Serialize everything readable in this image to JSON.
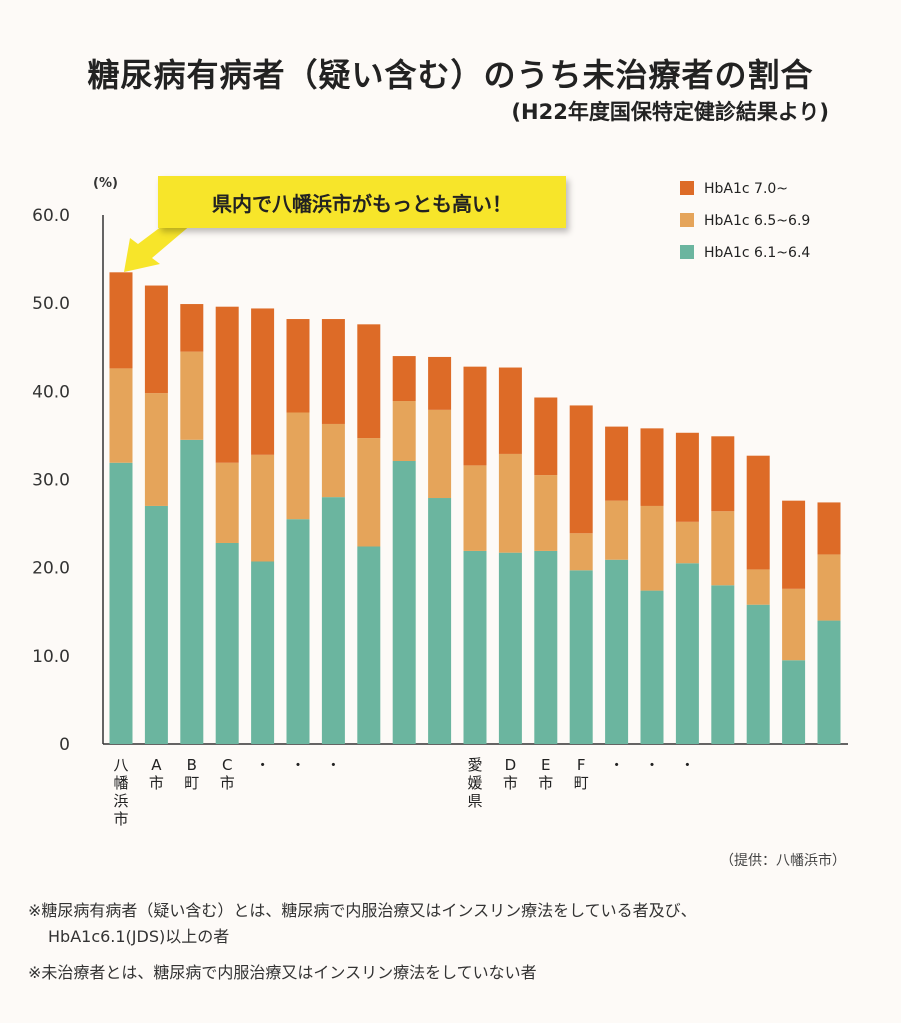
{
  "title": "糖尿病有病者（疑い含む）のうち未治療者の割合",
  "subtitle": "(H22年度国保特定健診結果より)",
  "callout": "県内で八幡浜市がもっとも高い！",
  "source": "（提供：八幡浜市）",
  "notes": {
    "note1_line1": "※糖尿病有病者（疑い含む）とは、糖尿病で内服治療又はインスリン療法をしている者及び、",
    "note1_line2": "HbA1c6.1(JDS)以上の者",
    "note2": "※未治療者とは、糖尿病で内服治療又はインスリン療法をしていない者"
  },
  "colors": {
    "hba1c_70": "#dd6b27",
    "hba1c_65": "#e5a45a",
    "hba1c_61": "#6bb59f",
    "callout_bg": "#f7e52a",
    "arrow": "#f7e52a"
  },
  "chart_data": {
    "type": "bar",
    "stacked": true,
    "ylabel": "(%)",
    "ylim": [
      0,
      60
    ],
    "yticks": [
      "0",
      "10.0",
      "20.0",
      "30.0",
      "40.0",
      "50.0",
      "60.0"
    ],
    "legend_position": "top-right",
    "categories": [
      "八幡浜市",
      "A市",
      "B町",
      "C市",
      "・",
      "・",
      "・",
      "",
      "",
      "",
      "愛媛県",
      "D市",
      "E市",
      "F町",
      "・",
      "・",
      "・",
      "",
      "",
      "",
      ""
    ],
    "series": [
      {
        "name": "HbA1c 6.1~6.4",
        "values": [
          31.9,
          27.0,
          34.5,
          22.8,
          20.7,
          25.5,
          28.0,
          22.4,
          32.1,
          27.9,
          21.9,
          21.7,
          21.9,
          19.7,
          20.9,
          17.4,
          20.5,
          18.0,
          15.8,
          9.5,
          14.0
        ]
      },
      {
        "name": "HbA1c 6.5~6.9",
        "values": [
          10.7,
          12.8,
          10.0,
          9.1,
          12.1,
          12.1,
          8.3,
          12.3,
          6.8,
          10.0,
          9.7,
          11.2,
          8.6,
          4.2,
          6.7,
          9.6,
          4.7,
          8.4,
          4.0,
          8.1,
          7.5
        ]
      },
      {
        "name": "HbA1c 7.0~",
        "values": [
          10.9,
          12.2,
          5.4,
          17.7,
          16.6,
          10.6,
          11.9,
          12.9,
          5.1,
          6.0,
          11.2,
          9.8,
          8.8,
          14.5,
          8.4,
          8.8,
          10.1,
          8.5,
          12.9,
          10.0,
          5.9
        ]
      }
    ]
  }
}
